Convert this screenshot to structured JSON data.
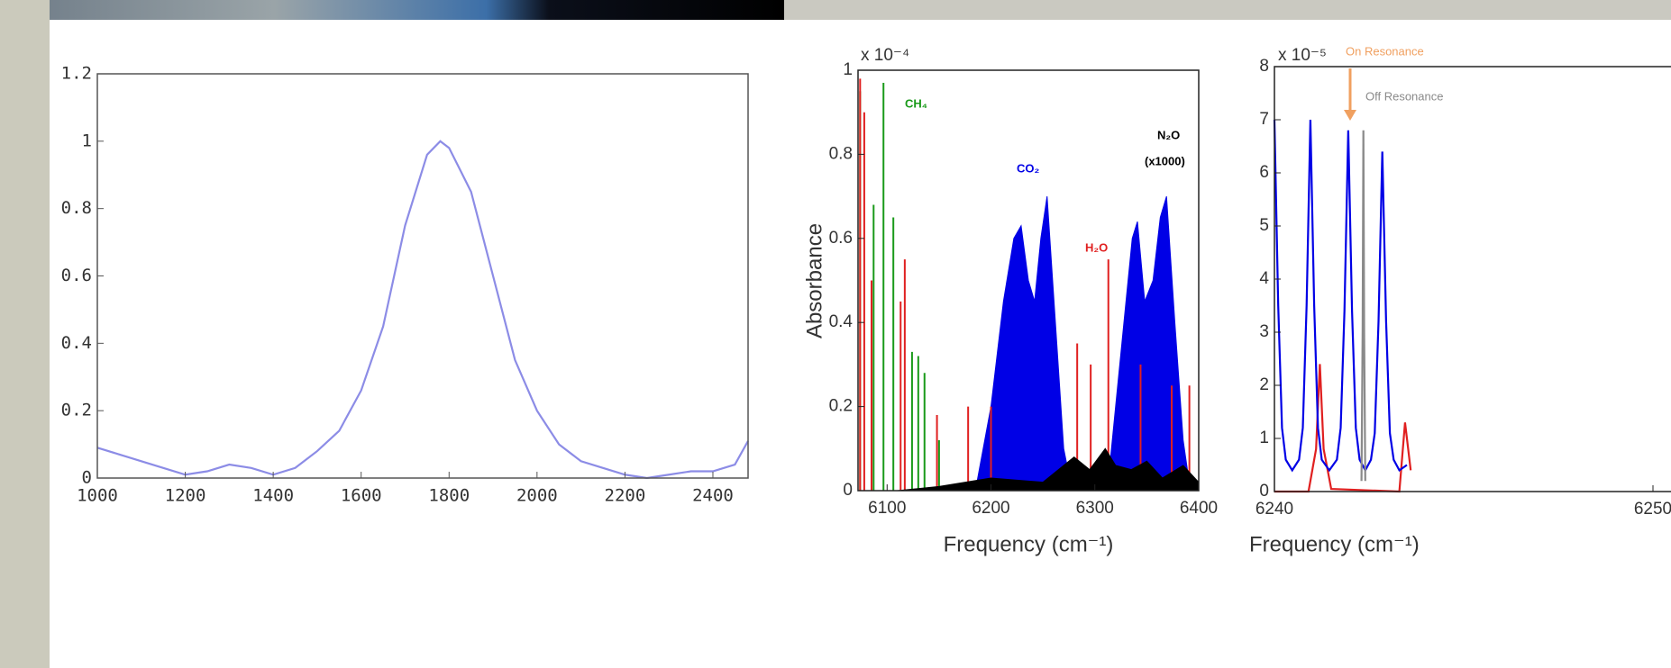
{
  "chart_data": [
    {
      "type": "line",
      "xlim": [
        1000,
        2480
      ],
      "xticks": [
        1000,
        1200,
        1400,
        1600,
        1800,
        2000,
        2200,
        2400
      ],
      "ylim": [
        0,
        1.2
      ],
      "yticks": [
        0,
        0.2,
        0.4,
        0.6,
        0.8,
        1,
        1.2
      ],
      "series": [
        {
          "color": "#8c8ce6",
          "kind": "line",
          "x": [
            1000,
            1050,
            1100,
            1150,
            1200,
            1250,
            1300,
            1350,
            1400,
            1450,
            1500,
            1550,
            1600,
            1650,
            1700,
            1750,
            1780,
            1800,
            1850,
            1900,
            1950,
            2000,
            2050,
            2100,
            2150,
            2200,
            2250,
            2300,
            2350,
            2400,
            2450,
            2480
          ],
          "values": [
            0.09,
            0.07,
            0.05,
            0.03,
            0.01,
            0.02,
            0.04,
            0.03,
            0.01,
            0.03,
            0.08,
            0.14,
            0.26,
            0.45,
            0.75,
            0.96,
            1.0,
            0.98,
            0.85,
            0.6,
            0.35,
            0.2,
            0.1,
            0.05,
            0.03,
            0.01,
            0.0,
            0.01,
            0.02,
            0.02,
            0.04,
            0.11
          ]
        }
      ]
    },
    {
      "type": "line",
      "y_multiplier": "x 10⁻⁴",
      "ylabel": "Absorbance",
      "xlabel": "Frequency (cm⁻¹)",
      "annotations": [
        "CH₄",
        "CO₂",
        "H₂O",
        "N₂O",
        "(x1000)"
      ],
      "xlim": [
        6072,
        6400
      ],
      "xticks": [
        6100,
        6200,
        6300,
        6400
      ],
      "ylim": [
        0,
        1
      ],
      "yticks": [
        0,
        0.2,
        0.4,
        0.6,
        0.8,
        1
      ],
      "series": [
        {
          "color": "#0000e6",
          "kind": "area",
          "x": [
            6185,
            6200,
            6212,
            6222,
            6229,
            6236,
            6242,
            6248,
            6254,
            6262,
            6270,
            6278,
            6312,
            6320,
            6330,
            6336,
            6341,
            6348,
            6356,
            6363,
            6369,
            6377,
            6385,
            6392
          ],
          "values": [
            0,
            0.2,
            0.45,
            0.6,
            0.63,
            0.5,
            0.45,
            0.6,
            0.7,
            0.4,
            0.1,
            0,
            0,
            0.2,
            0.45,
            0.6,
            0.64,
            0.45,
            0.5,
            0.65,
            0.7,
            0.4,
            0.12,
            0
          ]
        },
        {
          "color": "#1a9a1a",
          "kind": "stem",
          "x": [
            6074,
            6087,
            6096.5,
            6106,
            6124,
            6130,
            6136,
            6150
          ],
          "values": [
            0.95,
            0.68,
            0.97,
            0.65,
            0.33,
            0.32,
            0.28,
            0.12
          ]
        },
        {
          "color": "#e02020",
          "kind": "stem",
          "x": [
            6074,
            6078,
            6085,
            6113,
            6117,
            6148,
            6178,
            6200,
            6283,
            6296,
            6313,
            6344,
            6374,
            6391
          ],
          "values": [
            0.98,
            0.9,
            0.5,
            0.45,
            0.55,
            0.18,
            0.2,
            0.2,
            0.35,
            0.3,
            0.55,
            0.3,
            0.25,
            0.25
          ]
        },
        {
          "color": "#000000",
          "kind": "area",
          "x": [
            6110,
            6150,
            6200,
            6250,
            6280,
            6295,
            6310,
            6320,
            6335,
            6350,
            6365,
            6385,
            6400
          ],
          "values": [
            0,
            0.01,
            0.03,
            0.02,
            0.08,
            0.05,
            0.1,
            0.06,
            0.05,
            0.07,
            0.03,
            0.06,
            0.02
          ]
        }
      ]
    },
    {
      "type": "line",
      "y_multiplier": "x 10⁻⁵",
      "xlabel": "Frequency (cm⁻¹)",
      "annotations": [
        "On Resonance",
        "Off Resonance"
      ],
      "xlim": [
        6240,
        6251
      ],
      "xticks": [
        6240,
        6250
      ],
      "ylim": [
        0,
        8
      ],
      "yticks": [
        0,
        1,
        2,
        3,
        4,
        5,
        6,
        7,
        8
      ],
      "series": [
        {
          "color": "#e02020",
          "kind": "line",
          "x": [
            6240.0,
            6240.9,
            6241.1,
            6241.2,
            6241.3,
            6241.5,
            6243.3,
            6243.45,
            6243.6
          ],
          "values": [
            0,
            0,
            0.8,
            2.4,
            0.8,
            0.05,
            0,
            1.3,
            0.4
          ]
        },
        {
          "color": "#0000e6",
          "kind": "line",
          "x": [
            6240.0,
            6240.1,
            6240.2,
            6240.3,
            6240.47,
            6240.65,
            6240.75,
            6240.85,
            6240.95,
            6241.05,
            6241.15,
            6241.25,
            6241.45,
            6241.65,
            6241.75,
            6241.85,
            6241.95,
            6242.05,
            6242.15,
            6242.25,
            6242.4,
            6242.55,
            6242.65,
            6242.75,
            6242.85,
            6242.95,
            6243.05,
            6243.15,
            6243.3,
            6243.5
          ],
          "values": [
            7,
            3.5,
            1.2,
            0.6,
            0.4,
            0.6,
            1.2,
            3.5,
            7.0,
            3.5,
            1.2,
            0.6,
            0.4,
            0.6,
            1.2,
            3.4,
            6.8,
            3.4,
            1.2,
            0.6,
            0.4,
            0.6,
            1.1,
            3.2,
            6.4,
            3.2,
            1.1,
            0.6,
            0.4,
            0.5
          ]
        },
        {
          "color": "#8a8a8a",
          "kind": "line",
          "x": [
            6242.3,
            6242.33,
            6242.35,
            6242.37,
            6242.4
          ],
          "values": [
            0.2,
            3,
            6.8,
            3,
            0.2
          ]
        }
      ]
    }
  ]
}
